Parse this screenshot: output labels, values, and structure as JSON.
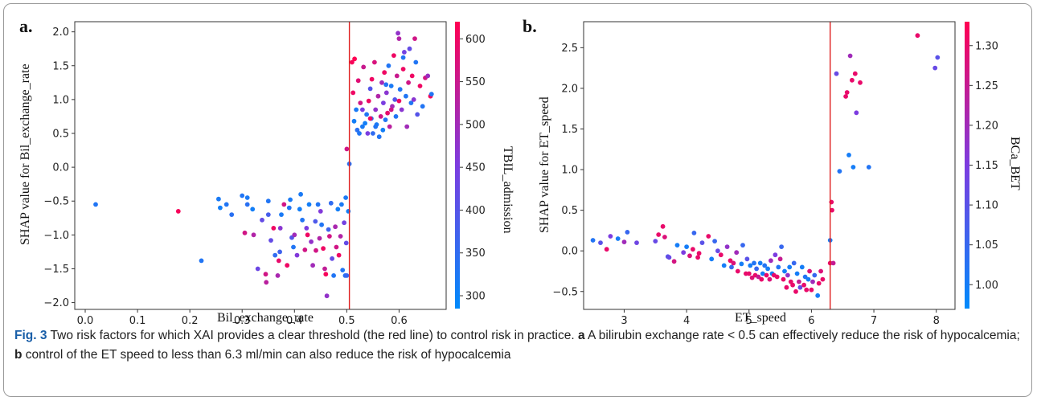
{
  "chart_data": [
    {
      "type": "scatter",
      "panel_label": "a.",
      "xlabel": "Bil_exchange_rate",
      "ylabel": "SHAP value for Bil_exchange_rate",
      "colorbar_label": "TBIL_admission",
      "xlim": [
        -0.02,
        0.69
      ],
      "ylim": [
        -2.1,
        2.15
      ],
      "xticks": [
        "0.0",
        "0.1",
        "0.2",
        "0.3",
        "0.4",
        "0.5",
        "0.6"
      ],
      "xtick_values": [
        0.0,
        0.1,
        0.2,
        0.3,
        0.4,
        0.5,
        0.6
      ],
      "yticks": [
        "−2.0",
        "−1.5",
        "−1.0",
        "−0.5",
        "0.0",
        "0.5",
        "1.0",
        "1.5",
        "2.0"
      ],
      "ytick_values": [
        -2.0,
        -1.5,
        -1.0,
        -0.5,
        0.0,
        0.5,
        1.0,
        1.5,
        2.0
      ],
      "color_range": [
        285,
        620
      ],
      "colorbar_ticks": [
        "300",
        "350",
        "400",
        "450",
        "500",
        "550",
        "600"
      ],
      "colorbar_tick_values": [
        300,
        350,
        400,
        450,
        500,
        550,
        600
      ],
      "threshold_x": 0.505,
      "points": [
        [
          0.02,
          -0.55,
          330
        ],
        [
          0.178,
          -0.65,
          610
        ],
        [
          0.222,
          -1.38,
          330
        ],
        [
          0.255,
          -0.47,
          320
        ],
        [
          0.258,
          -0.6,
          310
        ],
        [
          0.27,
          -0.55,
          330
        ],
        [
          0.28,
          -0.7,
          340
        ],
        [
          0.3,
          -0.42,
          330
        ],
        [
          0.305,
          -0.97,
          560
        ],
        [
          0.31,
          -0.45,
          320
        ],
        [
          0.31,
          -0.55,
          340
        ],
        [
          0.32,
          -0.62,
          310
        ],
        [
          0.322,
          -1.0,
          520
        ],
        [
          0.33,
          -1.5,
          430
        ],
        [
          0.338,
          -0.78,
          420
        ],
        [
          0.345,
          -1.58,
          560
        ],
        [
          0.346,
          -1.7,
          530
        ],
        [
          0.35,
          -0.5,
          330
        ],
        [
          0.35,
          -0.7,
          380
        ],
        [
          0.355,
          -1.08,
          420
        ],
        [
          0.36,
          -0.9,
          600
        ],
        [
          0.363,
          -1.3,
          350
        ],
        [
          0.368,
          -1.6,
          510
        ],
        [
          0.37,
          -1.38,
          590
        ],
        [
          0.372,
          -1.25,
          370
        ],
        [
          0.373,
          -0.9,
          470
        ],
        [
          0.375,
          -0.7,
          320
        ],
        [
          0.38,
          -0.55,
          560
        ],
        [
          0.386,
          -1.45,
          600
        ],
        [
          0.39,
          -0.6,
          330
        ],
        [
          0.392,
          -0.48,
          320
        ],
        [
          0.395,
          -1.04,
          400
        ],
        [
          0.398,
          -1.18,
          330
        ],
        [
          0.4,
          -1.0,
          500
        ],
        [
          0.405,
          -1.3,
          460
        ],
        [
          0.41,
          -0.62,
          310
        ],
        [
          0.412,
          -0.4,
          320
        ],
        [
          0.415,
          -0.78,
          330
        ],
        [
          0.42,
          -1.22,
          560
        ],
        [
          0.423,
          -0.9,
          450
        ],
        [
          0.425,
          -1.0,
          600
        ],
        [
          0.428,
          -0.55,
          310
        ],
        [
          0.432,
          -1.1,
          480
        ],
        [
          0.435,
          -1.45,
          500
        ],
        [
          0.44,
          -0.8,
          390
        ],
        [
          0.441,
          -1.23,
          560
        ],
        [
          0.445,
          -0.55,
          330
        ],
        [
          0.448,
          -1.05,
          520
        ],
        [
          0.45,
          -0.65,
          460
        ],
        [
          0.452,
          -0.85,
          330
        ],
        [
          0.455,
          -1.2,
          600
        ],
        [
          0.458,
          -1.5,
          540
        ],
        [
          0.46,
          -1.58,
          610
        ],
        [
          0.462,
          -1.9,
          480
        ],
        [
          0.465,
          -0.92,
          370
        ],
        [
          0.467,
          -1.02,
          560
        ],
        [
          0.47,
          -0.53,
          350
        ],
        [
          0.472,
          -1.35,
          420
        ],
        [
          0.475,
          -1.6,
          330
        ],
        [
          0.478,
          -0.88,
          510
        ],
        [
          0.48,
          -1.18,
          560
        ],
        [
          0.483,
          -0.62,
          310
        ],
        [
          0.485,
          -1.3,
          600
        ],
        [
          0.488,
          -1.02,
          520
        ],
        [
          0.49,
          -0.55,
          320
        ],
        [
          0.492,
          -1.52,
          330
        ],
        [
          0.495,
          -0.82,
          440
        ],
        [
          0.497,
          -1.6,
          340
        ],
        [
          0.498,
          -0.45,
          320
        ],
        [
          0.499,
          -1.12,
          420
        ],
        [
          0.5,
          -1.6,
          360
        ],
        [
          0.503,
          -0.65,
          310
        ],
        [
          0.5,
          0.27,
          560
        ],
        [
          0.505,
          0.05,
          340
        ],
        [
          0.51,
          1.55,
          610
        ],
        [
          0.512,
          1.1,
          600
        ],
        [
          0.514,
          0.68,
          310
        ],
        [
          0.515,
          1.6,
          620
        ],
        [
          0.518,
          0.85,
          320
        ],
        [
          0.52,
          0.55,
          340
        ],
        [
          0.522,
          1.28,
          580
        ],
        [
          0.524,
          0.5,
          330
        ],
        [
          0.526,
          0.95,
          560
        ],
        [
          0.53,
          0.6,
          320
        ],
        [
          0.532,
          1.48,
          550
        ],
        [
          0.535,
          0.65,
          310
        ],
        [
          0.538,
          0.78,
          330
        ],
        [
          0.54,
          0.5,
          450
        ],
        [
          0.542,
          0.98,
          600
        ],
        [
          0.545,
          1.16,
          400
        ],
        [
          0.547,
          0.72,
          330
        ],
        [
          0.548,
          1.3,
          600
        ],
        [
          0.55,
          0.5,
          350
        ],
        [
          0.553,
          1.55,
          570
        ],
        [
          0.555,
          0.85,
          480
        ],
        [
          0.557,
          0.63,
          320
        ],
        [
          0.56,
          1.05,
          520
        ],
        [
          0.562,
          0.45,
          330
        ],
        [
          0.565,
          0.75,
          560
        ],
        [
          0.567,
          1.25,
          500
        ],
        [
          0.569,
          0.55,
          310
        ],
        [
          0.57,
          0.95,
          450
        ],
        [
          0.572,
          1.4,
          600
        ],
        [
          0.574,
          0.7,
          330
        ],
        [
          0.576,
          1.1,
          470
        ],
        [
          0.578,
          0.8,
          590
        ],
        [
          0.58,
          1.5,
          330
        ],
        [
          0.582,
          0.6,
          530
        ],
        [
          0.585,
          1.2,
          320
        ],
        [
          0.587,
          0.9,
          500
        ],
        [
          0.59,
          1.65,
          600
        ],
        [
          0.592,
          1.0,
          400
        ],
        [
          0.594,
          0.75,
          330
        ],
        [
          0.596,
          1.35,
          550
        ],
        [
          0.598,
          1.98,
          480
        ],
        [
          0.6,
          1.9,
          520
        ],
        [
          0.602,
          1.15,
          330
        ],
        [
          0.605,
          0.85,
          470
        ],
        [
          0.608,
          1.45,
          600
        ],
        [
          0.61,
          1.7,
          440
        ],
        [
          0.613,
          1.05,
          330
        ],
        [
          0.615,
          0.6,
          500
        ],
        [
          0.618,
          1.25,
          560
        ],
        [
          0.62,
          1.75,
          420
        ],
        [
          0.623,
          0.95,
          330
        ],
        [
          0.625,
          1.35,
          600
        ],
        [
          0.628,
          1.0,
          470
        ],
        [
          0.63,
          1.9,
          560
        ],
        [
          0.632,
          1.55,
          330
        ],
        [
          0.635,
          0.78,
          400
        ],
        [
          0.64,
          1.2,
          600
        ],
        [
          0.645,
          0.9,
          330
        ],
        [
          0.65,
          1.32,
          560
        ],
        [
          0.655,
          1.35,
          490
        ],
        [
          0.66,
          1.05,
          610
        ],
        [
          0.662,
          1.08,
          330
        ],
        [
          0.608,
          1.62,
          330
        ],
        [
          0.585,
          0.85,
          560
        ],
        [
          0.545,
          0.72,
          600
        ],
        [
          0.575,
          1.22,
          330
        ],
        [
          0.6,
          0.98,
          600
        ],
        [
          0.53,
          0.85,
          450
        ],
        [
          0.555,
          0.6,
          330
        ]
      ]
    },
    {
      "type": "scatter",
      "panel_label": "b.",
      "xlabel": "ET_speed",
      "ylabel": "SHAP value for ET_speed",
      "colorbar_label": "BCa_BET",
      "xlim": [
        2.35,
        8.3
      ],
      "ylim": [
        -0.72,
        2.82
      ],
      "xticks": [
        "3",
        "4",
        "5",
        "6",
        "7",
        "8"
      ],
      "xtick_values": [
        3,
        4,
        5,
        6,
        7,
        8
      ],
      "yticks": [
        "−0.5",
        "0.0",
        "0.5",
        "1.0",
        "1.5",
        "2.0",
        "2.5"
      ],
      "ytick_values": [
        -0.5,
        0.0,
        0.5,
        1.0,
        1.5,
        2.0,
        2.5
      ],
      "color_range": [
        0.97,
        1.33
      ],
      "colorbar_ticks": [
        "1.00",
        "1.05",
        "1.10",
        "1.15",
        "1.20",
        "1.25",
        "1.30"
      ],
      "colorbar_tick_values": [
        1.0,
        1.05,
        1.1,
        1.15,
        1.2,
        1.25,
        1.3
      ],
      "threshold_x": 6.3,
      "points": [
        [
          2.5,
          0.13,
          1.02
        ],
        [
          2.62,
          0.1,
          1.1
        ],
        [
          2.72,
          0.02,
          1.3
        ],
        [
          2.78,
          0.18,
          1.15
        ],
        [
          2.9,
          0.15,
          1.0
        ],
        [
          3.0,
          0.11,
          1.2
        ],
        [
          3.05,
          0.23,
          1.05
        ],
        [
          3.2,
          0.1,
          1.13
        ],
        [
          3.5,
          0.12,
          1.12
        ],
        [
          3.55,
          0.2,
          1.3
        ],
        [
          3.62,
          0.3,
          1.3
        ],
        [
          3.65,
          0.17,
          1.28
        ],
        [
          3.7,
          -0.07,
          1.1
        ],
        [
          3.72,
          -0.08,
          1.12
        ],
        [
          3.8,
          -0.13,
          1.27
        ],
        [
          3.85,
          0.07,
          1.0
        ],
        [
          3.95,
          -0.02,
          1.15
        ],
        [
          4.0,
          0.05,
          1.0
        ],
        [
          4.05,
          -0.06,
          1.28
        ],
        [
          4.1,
          0.02,
          1.3
        ],
        [
          4.12,
          0.22,
          1.05
        ],
        [
          4.18,
          -0.08,
          1.3
        ],
        [
          4.2,
          -0.03,
          1.3
        ],
        [
          4.25,
          0.1,
          1.1
        ],
        [
          4.35,
          0.18,
          1.3
        ],
        [
          4.4,
          -0.1,
          1.0
        ],
        [
          4.45,
          0.12,
          1.05
        ],
        [
          4.5,
          0.0,
          1.12
        ],
        [
          4.55,
          -0.05,
          1.3
        ],
        [
          4.6,
          -0.18,
          1.0
        ],
        [
          4.65,
          0.05,
          1.18
        ],
        [
          4.7,
          -0.12,
          1.3
        ],
        [
          4.72,
          -0.2,
          1.05
        ],
        [
          4.75,
          -0.15,
          1.28
        ],
        [
          4.8,
          -0.02,
          1.2
        ],
        [
          4.82,
          -0.25,
          1.3
        ],
        [
          4.88,
          -0.16,
          1.0
        ],
        [
          4.9,
          0.07,
          1.05
        ],
        [
          4.95,
          -0.28,
          1.3
        ],
        [
          4.97,
          -0.1,
          1.1
        ],
        [
          5.0,
          -0.28,
          1.3
        ],
        [
          5.02,
          -0.18,
          1.0
        ],
        [
          5.05,
          -0.33,
          1.28
        ],
        [
          5.08,
          -0.15,
          1.02
        ],
        [
          5.1,
          -0.3,
          1.3
        ],
        [
          5.12,
          -0.22,
          1.05
        ],
        [
          5.15,
          -0.32,
          1.25
        ],
        [
          5.18,
          -0.15,
          1.0
        ],
        [
          5.2,
          -0.35,
          1.3
        ],
        [
          5.22,
          -0.28,
          1.0
        ],
        [
          5.25,
          -0.18,
          1.02
        ],
        [
          5.28,
          -0.3,
          1.3
        ],
        [
          5.3,
          -0.22,
          1.0
        ],
        [
          5.33,
          -0.35,
          1.28
        ],
        [
          5.35,
          -0.12,
          1.2
        ],
        [
          5.37,
          -0.28,
          1.0
        ],
        [
          5.4,
          -0.3,
          1.3
        ],
        [
          5.42,
          -0.05,
          1.15
        ],
        [
          5.45,
          -0.32,
          1.3
        ],
        [
          5.47,
          -0.2,
          1.02
        ],
        [
          5.5,
          -0.1,
          1.25
        ],
        [
          5.52,
          0.05,
          1.05
        ],
        [
          5.55,
          -0.35,
          1.3
        ],
        [
          5.57,
          -0.25,
          1.0
        ],
        [
          5.6,
          -0.45,
          1.3
        ],
        [
          5.62,
          -0.3,
          1.18
        ],
        [
          5.65,
          -0.2,
          1.0
        ],
        [
          5.67,
          -0.38,
          1.3
        ],
        [
          5.7,
          -0.42,
          1.3
        ],
        [
          5.72,
          -0.15,
          1.05
        ],
        [
          5.75,
          -0.5,
          1.3
        ],
        [
          5.77,
          -0.28,
          1.0
        ],
        [
          5.8,
          -0.38,
          1.25
        ],
        [
          5.82,
          -0.45,
          1.12
        ],
        [
          5.85,
          -0.2,
          1.0
        ],
        [
          5.88,
          -0.42,
          1.3
        ],
        [
          5.9,
          -0.32,
          1.02
        ],
        [
          5.92,
          -0.48,
          1.3
        ],
        [
          5.95,
          -0.35,
          1.0
        ],
        [
          5.97,
          -0.25,
          1.28
        ],
        [
          6.0,
          -0.48,
          1.3
        ],
        [
          6.02,
          -0.38,
          1.2
        ],
        [
          6.05,
          -0.3,
          1.05
        ],
        [
          6.1,
          -0.55,
          1.0
        ],
        [
          6.12,
          -0.4,
          1.3
        ],
        [
          6.15,
          -0.25,
          1.28
        ],
        [
          6.18,
          -0.35,
          1.3
        ],
        [
          6.3,
          0.13,
          1.0
        ],
        [
          6.3,
          -0.15,
          1.3
        ],
        [
          6.32,
          0.6,
          1.3
        ],
        [
          6.33,
          0.5,
          1.3
        ],
        [
          6.35,
          -0.15,
          1.25
        ],
        [
          6.4,
          2.18,
          1.12
        ],
        [
          6.45,
          0.98,
          1.02
        ],
        [
          6.55,
          1.9,
          1.3
        ],
        [
          6.57,
          1.95,
          1.3
        ],
        [
          6.6,
          1.18,
          1.0
        ],
        [
          6.62,
          2.4,
          1.2
        ],
        [
          6.65,
          2.1,
          1.3
        ],
        [
          6.67,
          1.03,
          1.0
        ],
        [
          6.7,
          2.18,
          1.3
        ],
        [
          6.72,
          1.7,
          1.15
        ],
        [
          6.78,
          2.07,
          1.3
        ],
        [
          6.92,
          1.03,
          1.02
        ],
        [
          7.7,
          2.65,
          1.3
        ],
        [
          7.98,
          2.25,
          1.12
        ],
        [
          8.02,
          2.38,
          1.1
        ]
      ]
    }
  ],
  "caption": {
    "fig_label": "Fig. 3",
    "text1": "  Two risk factors for which XAI provides a clear threshold (the red line) to control risk in practice. ",
    "a_label": "a",
    "text2": " A bilirubin exchange rate < 0.5 can effectively reduce the risk of hypocalcemia; ",
    "b_label": "b",
    "text3": " control of the ET speed to less than 6.3 ml/min can also reduce the risk of hypocalcemia"
  }
}
